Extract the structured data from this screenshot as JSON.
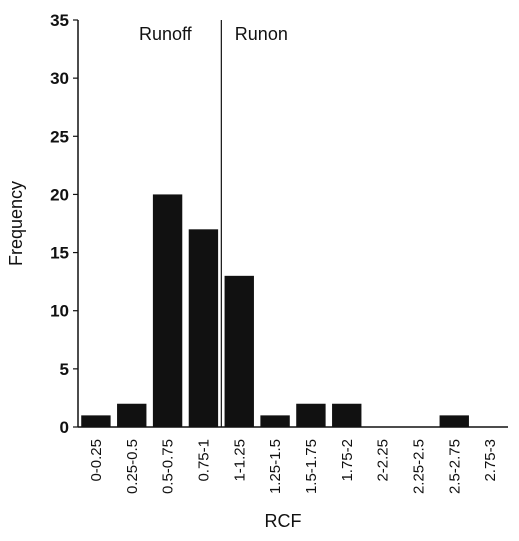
{
  "chart_data": {
    "type": "bar",
    "title": "",
    "xlabel": "RCF",
    "ylabel": "Frequency",
    "ylim": [
      0,
      35
    ],
    "yticks": [
      0,
      5,
      10,
      15,
      20,
      25,
      30,
      35
    ],
    "categories": [
      "0-0.25",
      "0.25-0.5",
      "0.5-0.75",
      "0.75-1",
      "1-1.25",
      "1.25-1.5",
      "1.5-1.75",
      "1.75-2",
      "2-2.25",
      "2.25-2.5",
      "2.5-2.75",
      "2.75-3"
    ],
    "values": [
      1,
      2,
      20,
      17,
      13,
      1,
      2,
      2,
      0,
      0,
      1,
      0
    ],
    "grid": false,
    "divider_at_category": "1-1.25",
    "annotations": {
      "left": "Runoff",
      "right": "Runon"
    },
    "bar_color": "#111111"
  }
}
